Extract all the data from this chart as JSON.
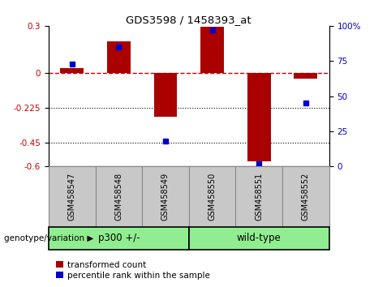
{
  "title": "GDS3598 / 1458393_at",
  "samples": [
    "GSM458547",
    "GSM458548",
    "GSM458549",
    "GSM458550",
    "GSM458551",
    "GSM458552"
  ],
  "transformed_count": [
    0.03,
    0.2,
    -0.28,
    0.295,
    -0.565,
    -0.04
  ],
  "percentile_rank": [
    73,
    85,
    18,
    97,
    2,
    45
  ],
  "ylim_left": [
    -0.6,
    0.3
  ],
  "ylim_right": [
    0,
    100
  ],
  "yticks_left": [
    -0.6,
    -0.45,
    -0.225,
    0,
    0.3
  ],
  "yticks_right": [
    0,
    25,
    50,
    75,
    100
  ],
  "dotted_lines": [
    -0.225,
    -0.45
  ],
  "bar_color": "#AA0000",
  "percentile_color": "#0000CC",
  "group_label": "genotype/variation",
  "group1_label": "p300 +/-",
  "group2_label": "wild-type",
  "group_color": "#90EE90",
  "sample_box_color": "#C8C8C8",
  "legend_label1": "transformed count",
  "legend_label2": "percentile rank within the sample"
}
